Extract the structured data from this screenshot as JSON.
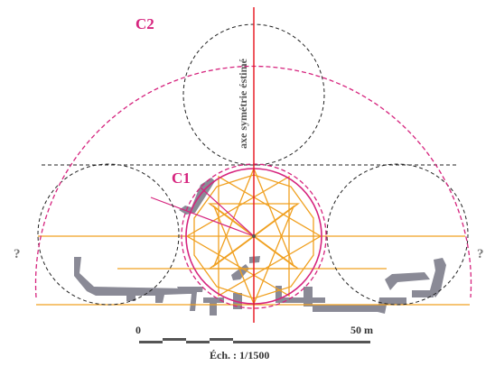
{
  "labels": {
    "c2": "C2",
    "c1": "C1",
    "axis": "axe symétrie éstimé",
    "question_left": "?",
    "question_right": "?",
    "scale_start": "0",
    "scale_end": "50 m",
    "scale_ratio": "Éch. : 1/1500"
  },
  "colors": {
    "circle_main": "#d6247e",
    "construction": "#f0a020",
    "axis_line": "#e8202a",
    "dashed_black": "#222222",
    "walls": "#8a8a96",
    "text_grey": "#777777",
    "scale_bar": "#555555"
  }
}
